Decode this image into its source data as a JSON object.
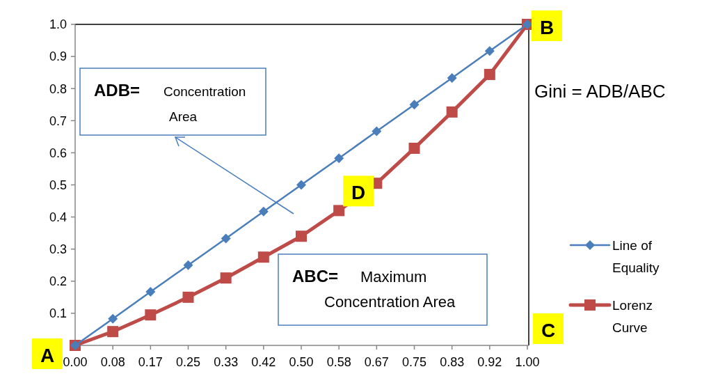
{
  "chart_data": {
    "type": "line",
    "categories": [
      "0.00",
      "0.08",
      "0.17",
      "0.25",
      "0.33",
      "0.42",
      "0.50",
      "0.58",
      "0.67",
      "0.75",
      "0.83",
      "0.92",
      "1.00"
    ],
    "series": [
      {
        "name": "Line of Equality",
        "color": "#4a7ebb",
        "marker": "diamond",
        "values": [
          0,
          0.083,
          0.167,
          0.25,
          0.333,
          0.417,
          0.5,
          0.583,
          0.667,
          0.75,
          0.833,
          0.917,
          1.0
        ]
      },
      {
        "name": "Lorenz Curve",
        "color": "#be4b48",
        "marker": "square",
        "values": [
          0,
          0.043,
          0.095,
          0.15,
          0.21,
          0.275,
          0.34,
          0.42,
          0.505,
          0.614,
          0.727,
          0.844,
          1.0
        ]
      }
    ],
    "ylim": [
      0,
      1
    ],
    "yticks": [
      {
        "value": 0,
        "label": null
      },
      {
        "value": 0.1,
        "label": "0.1"
      },
      {
        "value": 0.2,
        "label": "0.2"
      },
      {
        "value": 0.3,
        "label": "0.3"
      },
      {
        "value": 0.4,
        "label": "0.4"
      },
      {
        "value": 0.5,
        "label": "0.5"
      },
      {
        "value": 0.6,
        "label": "0.6"
      },
      {
        "value": 0.7,
        "label": "0.7"
      },
      {
        "value": 0.8,
        "label": "0.8"
      },
      {
        "value": 0.9,
        "label": "0.9"
      },
      {
        "value": 1.0,
        "label": "1.0"
      }
    ],
    "grid": false,
    "legend": "right",
    "annotations": [
      "ADB= Concentration Area",
      "ABC= Maximum Concentration Area",
      "Gini = ADB/ABC",
      "C",
      {
        "text": "A",
        "x": "0.00",
        "y": 0
      },
      {
        "text": "B",
        "x": "1.00",
        "y": 1.0
      },
      {
        "text": "D",
        "x": "0.58",
        "y": 0.42
      }
    ]
  }
}
